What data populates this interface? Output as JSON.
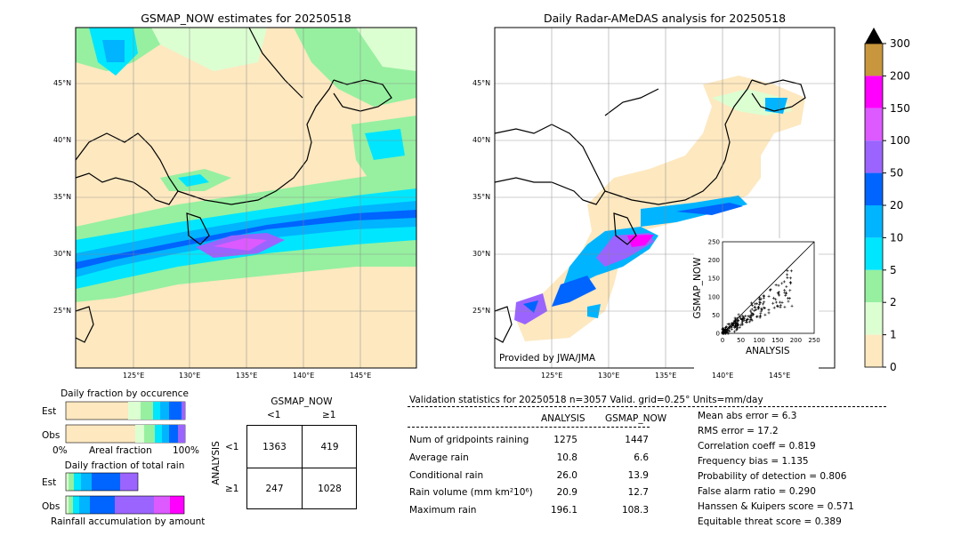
{
  "left_map": {
    "title": "GSMAP_NOW estimates for 20250518",
    "lat_labels": [
      "45°N",
      "40°N",
      "35°N",
      "30°N",
      "25°N"
    ],
    "lon_labels": [
      "125°E",
      "130°E",
      "135°E",
      "140°E",
      "145°E"
    ]
  },
  "right_map": {
    "title": "Daily Radar-AMeDAS analysis for 20250518",
    "lat_labels": [
      "45°N",
      "40°N",
      "35°N",
      "30°N",
      "25°N"
    ],
    "lon_labels": [
      "125°E",
      "130°E",
      "135°E",
      "140°E",
      "145°E"
    ],
    "credit": "Provided by JWA/JMA"
  },
  "colorbar": {
    "ticks": [
      "300",
      "200",
      "150",
      "100",
      "50",
      "20",
      "10",
      "5",
      "2",
      "1",
      "0"
    ],
    "colors": [
      "#c8963c",
      "#ff00ff",
      "#dc5aff",
      "#9b64ff",
      "#0064ff",
      "#00b4ff",
      "#00e6ff",
      "#96f0a0",
      "#dcffd2",
      "#fde8c0"
    ]
  },
  "chart_data": [
    {
      "type": "scatter",
      "title": "",
      "xlabel": "ANALYSIS",
      "ylabel": "GSMAP_NOW",
      "xlim": [
        0,
        250
      ],
      "ylim": [
        0,
        250
      ],
      "x_ticks": [
        "0",
        "50",
        "100",
        "150",
        "200",
        "250"
      ],
      "y_ticks": [
        "0",
        "50",
        "100",
        "150",
        "200",
        "250"
      ]
    },
    {
      "type": "bar",
      "title": "Daily fraction by occurence",
      "rows": [
        "Est",
        "Obs"
      ],
      "x_ticks": [
        "0%",
        "100%"
      ],
      "xlabel": "Areal fraction"
    },
    {
      "type": "bar",
      "title": "Daily fraction of total rain",
      "rows": [
        "Est",
        "Obs"
      ],
      "xlabel": "Rainfall accumulation by amount"
    },
    {
      "type": "table",
      "title": "GSMAP_NOW",
      "col_labels": [
        "<1",
        "≥1"
      ],
      "row_title": "ANALYSIS",
      "row_labels": [
        "<1",
        "≥1"
      ],
      "cells": [
        [
          "1363",
          "419"
        ],
        [
          "247",
          "1028"
        ]
      ]
    }
  ],
  "validation": {
    "header": "Validation statistics for 20250518  n=3057 Valid. grid=0.25° Units=mm/day",
    "col_analysis": "ANALYSIS",
    "col_gsmap": "GSMAP_NOW",
    "rows": [
      {
        "label": "Num of gridpoints raining",
        "analysis": "1275",
        "gsmap": "1447"
      },
      {
        "label": "Average rain",
        "analysis": "10.8",
        "gsmap": "6.6"
      },
      {
        "label": "Conditional rain",
        "analysis": "26.0",
        "gsmap": "13.9"
      },
      {
        "label": "Rain volume (mm km²10⁶)",
        "analysis": "20.9",
        "gsmap": "12.7"
      },
      {
        "label": "Maximum rain",
        "analysis": "196.1",
        "gsmap": "108.3"
      }
    ],
    "scores": [
      "Mean abs error =    6.3",
      "RMS error =   17.2",
      "Correlation coeff =  0.819",
      "Frequency bias =  1.135",
      "Probability of detection =  0.806",
      "False alarm ratio =  0.290",
      "Hanssen & Kuipers score =  0.571",
      "Equitable threat score =  0.389"
    ]
  }
}
